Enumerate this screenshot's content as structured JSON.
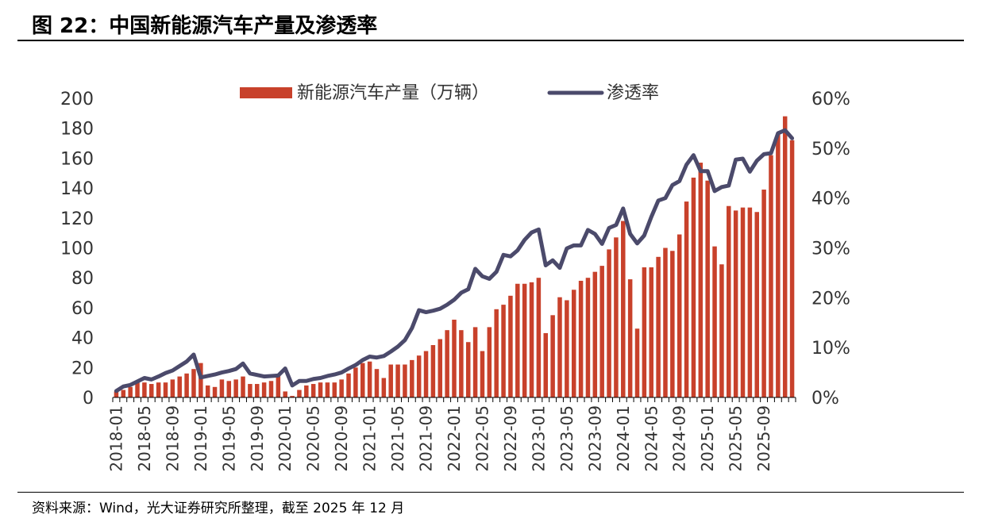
{
  "figure_title": "图 22：中国新能源汽车产量及渗透率",
  "source_note": "资料来源：Wind，光大证券研究所整理，截至 2025 年 12 月",
  "colors": {
    "bar": "#c8412b",
    "line": "#4b4a6b",
    "axis": "#000000"
  },
  "chart_data": {
    "type": "bar+line",
    "legend": [
      "新能源汽车产量（万辆）",
      "渗透率"
    ],
    "legend_position": "top-center",
    "y_left": {
      "min": 0,
      "max": 200,
      "ticks": [
        "0",
        "20",
        "40",
        "60",
        "80",
        "100",
        "120",
        "140",
        "160",
        "180",
        "200"
      ]
    },
    "y_right": {
      "min": 0,
      "max": 60,
      "ticks": [
        "0%",
        "10%",
        "20%",
        "30%",
        "40%",
        "50%",
        "60%"
      ]
    },
    "x_tick_labels": [
      "2018-01",
      "2018-05",
      "2018-09",
      "2019-01",
      "2019-05",
      "2019-09",
      "2020-01",
      "2020-05",
      "2020-09",
      "2021-01",
      "2021-05",
      "2021-09",
      "2022-01",
      "2022-05",
      "2022-09",
      "2023-01",
      "2023-05",
      "2023-09",
      "2024-01",
      "2024-05",
      "2024-09",
      "2025-01",
      "2025-05",
      "2025-09"
    ],
    "x_tick_every": 4,
    "start_month": "2018-01",
    "series": [
      {
        "name": "新能源汽车产量（万辆）",
        "type": "bar",
        "values": [
          4,
          5,
          7,
          10,
          10,
          9,
          10,
          10,
          12,
          14,
          16,
          19,
          23,
          8,
          7,
          12,
          11,
          12,
          14,
          9,
          9,
          10,
          11,
          15,
          4,
          1,
          5,
          8,
          9,
          10,
          10,
          10,
          12,
          16,
          20,
          23,
          24,
          19,
          13,
          22,
          22,
          22,
          25,
          28,
          31,
          35,
          39,
          45,
          52,
          45,
          37,
          47,
          31,
          47,
          59,
          62,
          68,
          76,
          76,
          77,
          80,
          43,
          55,
          67,
          65,
          72,
          78,
          80,
          84,
          88,
          99,
          107,
          118,
          79,
          46,
          87,
          87,
          94,
          100,
          98,
          109,
          131,
          147,
          157,
          145,
          101,
          89,
          128,
          125,
          127,
          127,
          124,
          139,
          162,
          176,
          188,
          172
        ]
      },
      {
        "name": "渗透率",
        "type": "line",
        "unit": "%",
        "values": [
          1.3,
          2.2,
          2.5,
          3.2,
          3.9,
          3.6,
          4.2,
          4.9,
          5.4,
          6.3,
          7.2,
          8.6,
          4.0,
          4.3,
          4.6,
          5.0,
          5.3,
          5.7,
          6.8,
          4.8,
          4.5,
          4.2,
          4.3,
          4.4,
          5.8,
          2.4,
          3.3,
          3.3,
          3.7,
          3.9,
          4.3,
          4.6,
          5.0,
          5.8,
          6.5,
          7.5,
          8.2,
          8.0,
          8.3,
          9.2,
          10.2,
          11.5,
          13.9,
          17.5,
          17.1,
          17.4,
          17.8,
          18.6,
          19.6,
          21.0,
          21.7,
          25.8,
          24.3,
          23.8,
          25.2,
          28.6,
          28.3,
          29.5,
          31.6,
          33.1,
          33.7,
          26.5,
          27.5,
          26.0,
          29.9,
          30.5,
          30.5,
          33.6,
          32.8,
          30.8,
          34.0,
          34.6,
          37.9,
          32.8,
          30.9,
          32.5,
          36.2,
          39.5,
          40.0,
          42.6,
          43.4,
          46.7,
          48.6,
          45.4,
          45.4,
          41.4,
          42.2,
          42.5,
          47.7,
          47.9,
          45.3,
          47.5,
          48.8,
          49.0,
          53.0,
          53.6,
          52.0
        ]
      }
    ]
  }
}
